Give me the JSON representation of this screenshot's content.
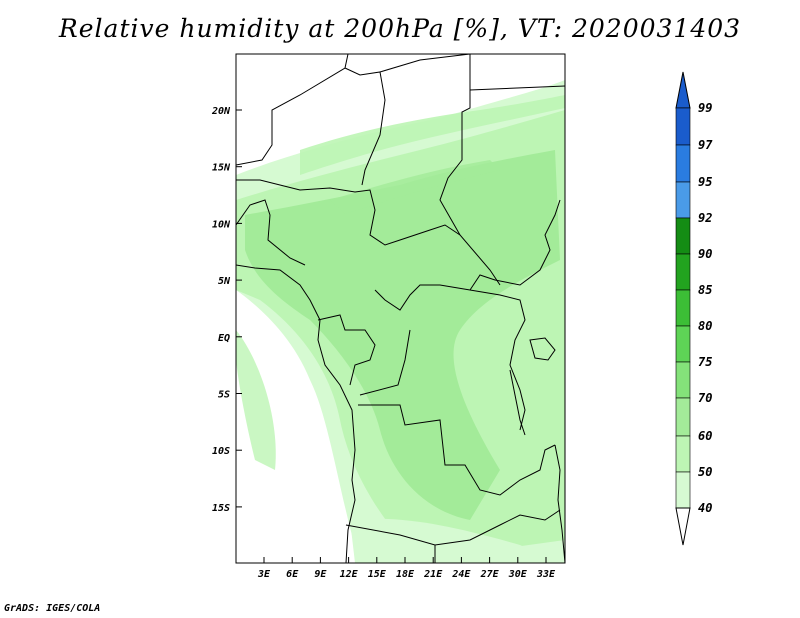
{
  "title": "Relative humidity at 200hPa [%], VT: 2020031403",
  "credit": "GrADS: IGES/COLA",
  "map": {
    "lon_labels": [
      "3E",
      "6E",
      "9E",
      "12E",
      "15E",
      "18E",
      "21E",
      "24E",
      "27E",
      "30E",
      "33E"
    ],
    "lat_labels": [
      "20N",
      "15N",
      "10N",
      "5N",
      "EQ",
      "5S",
      "10S",
      "15S"
    ],
    "colors": {
      "c40": "#f0fff0",
      "c50": "#d6fad2",
      "c60": "#bdf5b4",
      "c70": "#a3eb99",
      "c75": "#84e27a",
      "c80": "#5ed456",
      "c85": "#3cbe36",
      "c90": "#22a31f",
      "c92": "#148c14",
      "c95": "#4a9be8",
      "c97": "#2a7ce0",
      "c99": "#1a5ccc",
      "border": "#000000"
    }
  },
  "colorbar": {
    "labels": [
      "99",
      "97",
      "95",
      "92",
      "90",
      "85",
      "80",
      "75",
      "70",
      "60",
      "50",
      "40"
    ]
  }
}
